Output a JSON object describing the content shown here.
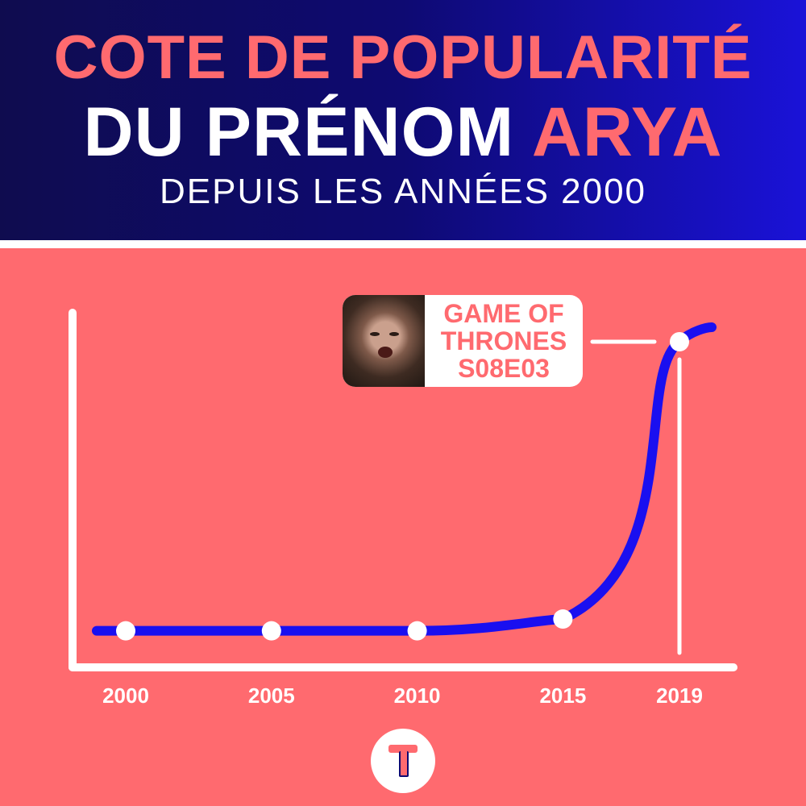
{
  "header": {
    "title_line1": "COTE DE POPULARITÉ",
    "title_line2_a": "DU PRÉNOM",
    "title_line2_b": "ARYA",
    "subtitle": "DEPUIS LES ANNÉES 2000"
  },
  "annotation": {
    "lines": [
      "GAME OF",
      "THRONES",
      "S08E03"
    ]
  },
  "colors": {
    "background": "#ff6a6f",
    "header_dark": "#0f0c4f",
    "header_blue": "#1a12d8",
    "line": "#1a0ff0",
    "accent": "#ff6a6f",
    "white": "#ffffff"
  },
  "chart_data": {
    "type": "line",
    "x": [
      2000,
      2005,
      2010,
      2015,
      2019
    ],
    "series": [
      {
        "values": [
          2,
          2,
          2,
          6,
          100
        ]
      }
    ],
    "xlim": [
      1999,
      2020
    ],
    "ylim": [
      0,
      100
    ],
    "tick_labels": [
      "2000",
      "2005",
      "2010",
      "2015",
      "2019"
    ],
    "grid": false,
    "legend": "none",
    "title": "",
    "xlabel": "",
    "ylabel": ""
  }
}
